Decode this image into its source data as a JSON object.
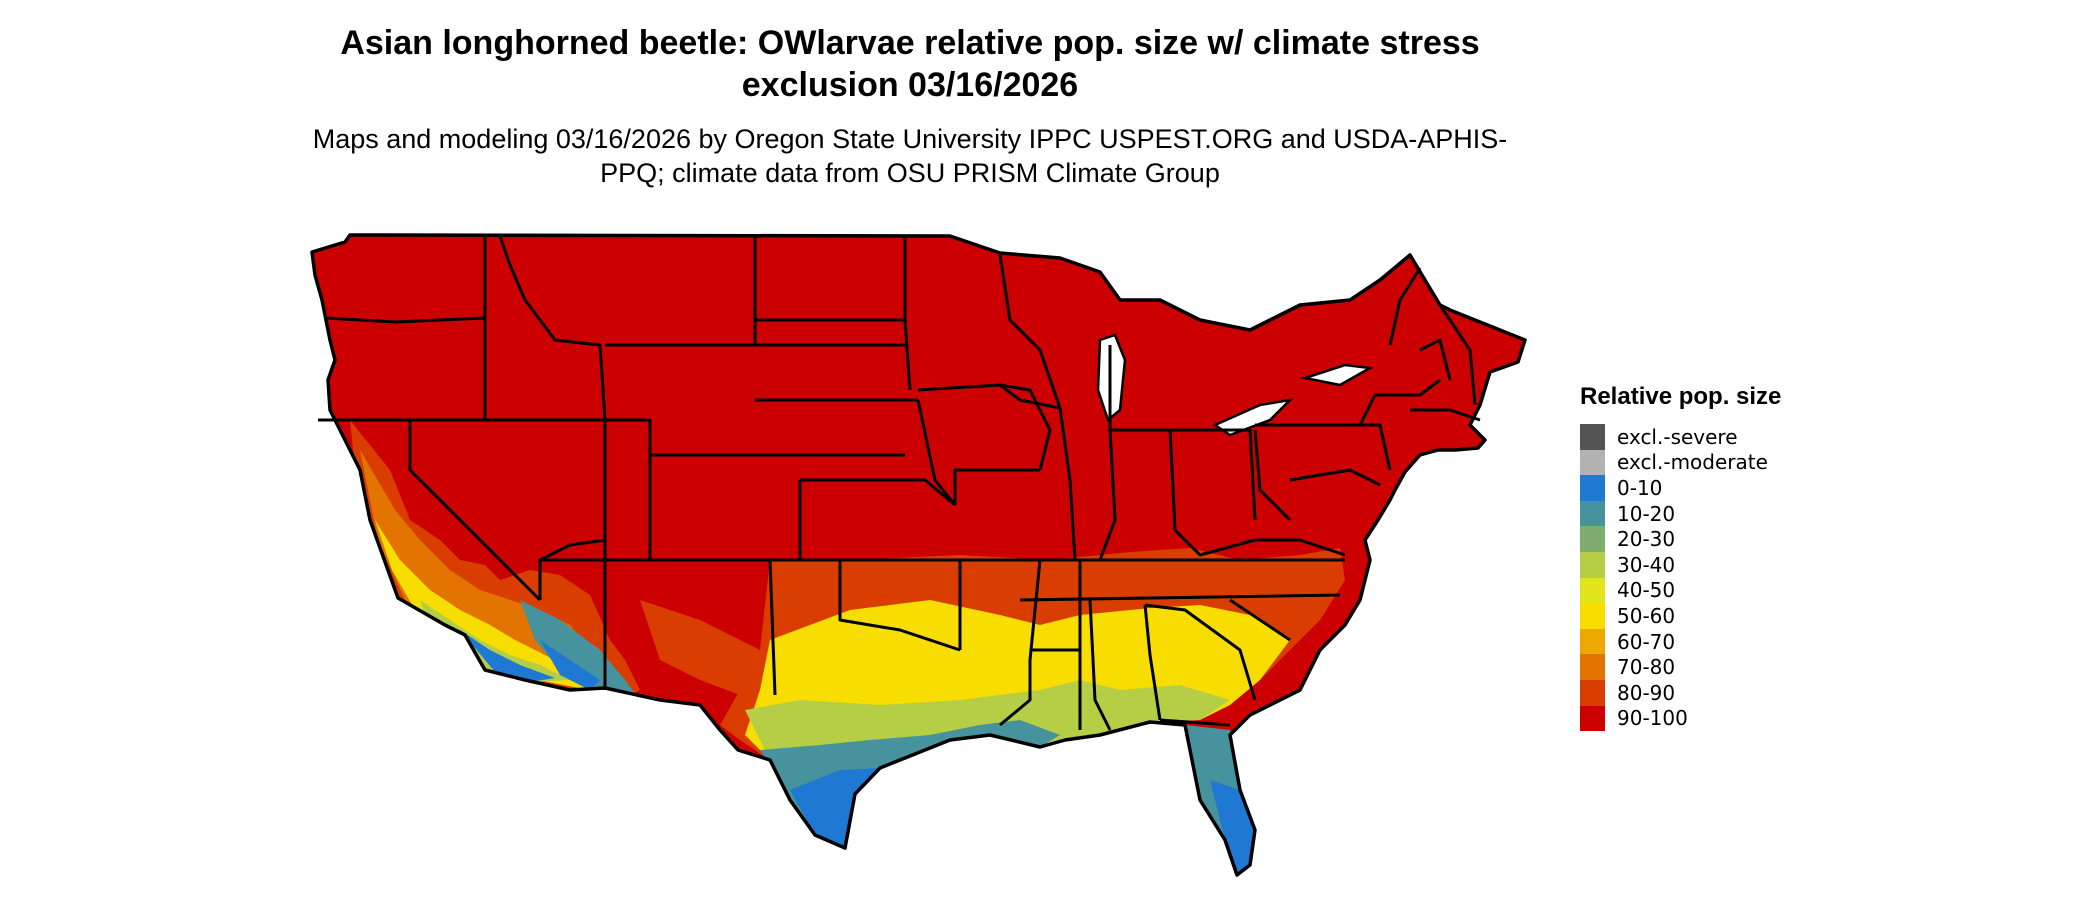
{
  "title": "Asian longhorned beetle: OWlarvae relative pop. size w/ climate stress exclusion 03/16/2026",
  "subtitle": "Maps and modeling 03/16/2026 by Oregon State University IPPC USPEST.ORG and USDA-APHIS-PPQ; climate data from OSU PRISM Climate Group",
  "legend": {
    "title": "Relative pop. size",
    "items": [
      {
        "label": "excl.-severe",
        "color": "#545454"
      },
      {
        "label": "excl.-moderate",
        "color": "#b3b3b3"
      },
      {
        "label": "0-10",
        "color": "#1f78d1"
      },
      {
        "label": "10-20",
        "color": "#46939e"
      },
      {
        "label": "20-30",
        "color": "#7fae70"
      },
      {
        "label": "30-40",
        "color": "#b5ce45"
      },
      {
        "label": "40-50",
        "color": "#e1e61c"
      },
      {
        "label": "50-60",
        "color": "#f7de00"
      },
      {
        "label": "60-70",
        "color": "#eda900"
      },
      {
        "label": "70-80",
        "color": "#e47400"
      },
      {
        "label": "80-90",
        "color": "#d93e00"
      },
      {
        "label": "90-100",
        "color": "#cc0000"
      }
    ]
  }
}
